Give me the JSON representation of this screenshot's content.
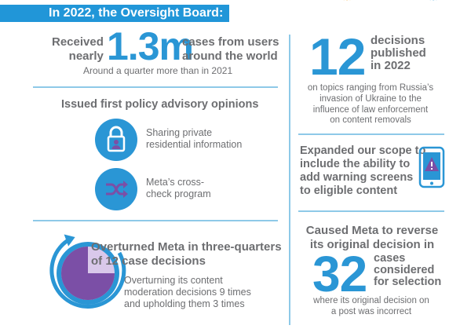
{
  "header": {
    "title": "In 2022, the Oversight Board:"
  },
  "cases": {
    "prefix": "Received\nnearly",
    "number": "1.3m",
    "suffix": "cases from users\naround the world",
    "note": "Around a quarter more than in 2021"
  },
  "decisions": {
    "number": "12",
    "label": "decisions\npublished\nin 2022",
    "note": "on topics ranging from Russia’s\ninvasion of Ukraine to the\ninfluence of law enforcement\non content removals"
  },
  "advisory": {
    "title": "Issued first policy advisory opinions",
    "items": [
      {
        "label": "Sharing private\nresidential information",
        "icon": "lock-user-icon"
      },
      {
        "label": "Meta’s cross-\ncheck program",
        "icon": "shuffle-arrows-icon"
      }
    ]
  },
  "scope": {
    "text": "Expanded our scope to\ninclude the ability to\nadd warning screens\nto eligible content",
    "icon": "phone-warning-icon"
  },
  "overturned": {
    "title": "Overturned Meta in three-quarters\nof 12 case decisions",
    "note": "Overturning its content\nmoderation decisions 9 times\nand upholding them 3 times",
    "fraction_overturned": 0.75
  },
  "reverse": {
    "title": "Caused Meta to reverse\nits original decision in",
    "number": "32",
    "label": "cases\nconsidered\nfor selection",
    "note": "where its original decision on\na post was incorrect"
  },
  "colors": {
    "blue": "#2a96d5",
    "purple": "#7b4fa6",
    "grey": "#6d6e71",
    "orange": "#f5a623"
  }
}
